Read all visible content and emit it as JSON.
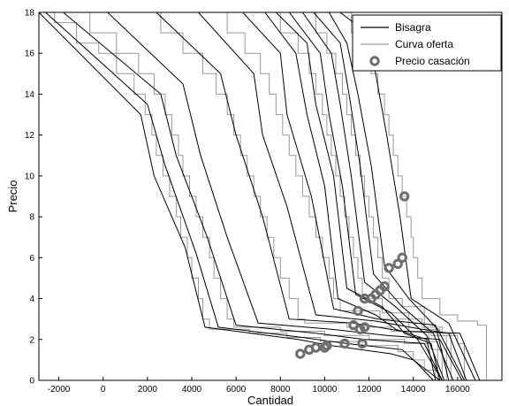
{
  "chart_data": {
    "type": "line",
    "xlabel": "Cantidad",
    "ylabel": "Precio",
    "xlim": [
      -2900,
      18000
    ],
    "ylim": [
      0,
      18
    ],
    "xticks": [
      -2000,
      0,
      2000,
      4000,
      6000,
      8000,
      10000,
      12000,
      14000,
      16000
    ],
    "yticks": [
      0,
      2,
      4,
      6,
      8,
      10,
      12,
      14,
      16,
      18
    ],
    "grid": false,
    "legend_position": "top-right",
    "legend": [
      {
        "label": "Bisagra",
        "kind": "line",
        "color": "#000000"
      },
      {
        "label": "Curva oferta",
        "kind": "line",
        "color": "#9a9a9a"
      },
      {
        "label": "Precio casación",
        "kind": "marker",
        "color": "#6e6e6e"
      }
    ],
    "series_bisagra": [
      [
        [
          -2900,
          18
        ],
        [
          1700,
          13
        ],
        [
          2300,
          10
        ],
        [
          3700,
          6.5
        ],
        [
          4600,
          2.6
        ],
        [
          8800,
          2.0
        ],
        [
          10300,
          1.7
        ],
        [
          13000,
          1.3
        ],
        [
          14000,
          1.0
        ],
        [
          15200,
          0
        ]
      ],
      [
        [
          -2600,
          18
        ],
        [
          2000,
          13.5
        ],
        [
          2800,
          10.5
        ],
        [
          4200,
          6.2
        ],
        [
          5200,
          2.6
        ],
        [
          9000,
          2.1
        ],
        [
          11000,
          1.8
        ],
        [
          13500,
          1.5
        ],
        [
          14200,
          0.8
        ],
        [
          14900,
          0
        ]
      ],
      [
        [
          -1800,
          18
        ],
        [
          2600,
          14
        ],
        [
          3300,
          11
        ],
        [
          4700,
          7
        ],
        [
          6000,
          2.7
        ],
        [
          9600,
          2.3
        ],
        [
          11800,
          2.0
        ],
        [
          14500,
          1.8
        ],
        [
          15300,
          0
        ]
      ],
      [
        [
          200,
          18
        ],
        [
          3600,
          14.5
        ],
        [
          4400,
          11
        ],
        [
          5600,
          7
        ],
        [
          7000,
          2.8
        ],
        [
          10300,
          2.5
        ],
        [
          12800,
          2.2
        ],
        [
          15200,
          2.0
        ],
        [
          16200,
          0
        ]
      ],
      [
        [
          2400,
          18
        ],
        [
          5300,
          15
        ],
        [
          6000,
          12
        ],
        [
          7200,
          8
        ],
        [
          8400,
          3.0
        ],
        [
          11300,
          2.8
        ],
        [
          13500,
          2.4
        ],
        [
          16100,
          2.3
        ],
        [
          17000,
          0
        ]
      ],
      [
        [
          4300,
          18
        ],
        [
          6800,
          15
        ],
        [
          7200,
          12
        ],
        [
          8300,
          8.5
        ],
        [
          9600,
          3.2
        ],
        [
          12300,
          2.9
        ],
        [
          14400,
          2.5
        ],
        [
          15600,
          2.3
        ],
        [
          16400,
          0
        ]
      ],
      [
        [
          6300,
          18
        ],
        [
          8000,
          16
        ],
        [
          8300,
          13
        ],
        [
          9400,
          9
        ],
        [
          10400,
          3.5
        ],
        [
          12400,
          3.0
        ],
        [
          15000,
          2.7
        ],
        [
          15600,
          0
        ]
      ],
      [
        [
          7300,
          18
        ],
        [
          8700,
          16
        ],
        [
          9200,
          13
        ],
        [
          10000,
          9.5
        ],
        [
          10600,
          4
        ],
        [
          12300,
          3.2
        ],
        [
          13200,
          2.5
        ],
        [
          14600,
          2.0
        ],
        [
          15000,
          0
        ]
      ],
      [
        [
          7800,
          18
        ],
        [
          9200,
          16.5
        ],
        [
          9600,
          13.5
        ],
        [
          10400,
          10
        ],
        [
          11000,
          4.5
        ],
        [
          12600,
          3.6
        ],
        [
          13600,
          2.3
        ],
        [
          14800,
          1.8
        ],
        [
          15200,
          0
        ]
      ],
      [
        [
          8400,
          18
        ],
        [
          9800,
          16
        ],
        [
          10200,
          13
        ],
        [
          10800,
          9.5
        ],
        [
          11400,
          4.2
        ],
        [
          13000,
          3.3
        ],
        [
          14200,
          2.0
        ],
        [
          15300,
          0
        ]
      ],
      [
        [
          9000,
          18
        ],
        [
          10300,
          16
        ],
        [
          10700,
          13.5
        ],
        [
          11200,
          10
        ],
        [
          11800,
          4.8
        ],
        [
          13200,
          3.6
        ],
        [
          14600,
          2.2
        ],
        [
          15400,
          0
        ]
      ],
      [
        [
          9500,
          18
        ],
        [
          10700,
          16.5
        ],
        [
          11100,
          14
        ],
        [
          11600,
          10.5
        ],
        [
          12200,
          5.2
        ],
        [
          13500,
          3.6
        ],
        [
          14900,
          2.3
        ],
        [
          15800,
          0
        ]
      ],
      [
        [
          10200,
          18
        ],
        [
          11000,
          16.5
        ],
        [
          11500,
          14
        ],
        [
          12100,
          10.5
        ],
        [
          12700,
          5.6
        ],
        [
          13800,
          4.0
        ],
        [
          15100,
          2.5
        ],
        [
          16300,
          0
        ]
      ],
      [
        [
          10700,
          18
        ],
        [
          11900,
          17
        ],
        [
          12300,
          15
        ],
        [
          12800,
          12
        ],
        [
          13400,
          8
        ],
        [
          13900,
          4
        ],
        [
          15600,
          2.8
        ],
        [
          16800,
          0
        ]
      ]
    ],
    "series_oferta": [
      [
        [
          -2600,
          18
        ],
        [
          -2200,
          17.5
        ],
        [
          -1200,
          16.5
        ],
        [
          -200,
          16
        ],
        [
          600,
          15
        ],
        [
          1400,
          14
        ],
        [
          1900,
          13
        ],
        [
          2200,
          12
        ],
        [
          2400,
          11
        ],
        [
          2700,
          10
        ],
        [
          3000,
          9
        ],
        [
          3300,
          8
        ],
        [
          3500,
          7
        ],
        [
          3800,
          6
        ],
        [
          4000,
          5
        ],
        [
          4300,
          4
        ],
        [
          4500,
          3
        ],
        [
          4800,
          2.5
        ],
        [
          6600,
          2.3
        ],
        [
          8300,
          2.1
        ],
        [
          9800,
          1.9
        ],
        [
          11700,
          1.7
        ],
        [
          13300,
          1.4
        ],
        [
          14000,
          1.0
        ],
        [
          14500,
          0.5
        ],
        [
          15000,
          0
        ]
      ],
      [
        [
          -1600,
          18
        ],
        [
          -600,
          17
        ],
        [
          600,
          16
        ],
        [
          1600,
          15
        ],
        [
          2300,
          14
        ],
        [
          2800,
          13
        ],
        [
          3100,
          12
        ],
        [
          3400,
          11
        ],
        [
          3600,
          10
        ],
        [
          3900,
          9
        ],
        [
          4200,
          8
        ],
        [
          4500,
          7
        ],
        [
          4800,
          6
        ],
        [
          5000,
          5
        ],
        [
          5300,
          4
        ],
        [
          5600,
          3
        ],
        [
          5900,
          2.6
        ],
        [
          8000,
          2.4
        ],
        [
          10000,
          2.2
        ],
        [
          12000,
          2.0
        ],
        [
          13600,
          1.8
        ],
        [
          14800,
          1.5
        ],
        [
          15300,
          0
        ]
      ],
      [
        [
          1400,
          18
        ],
        [
          2600,
          17
        ],
        [
          3600,
          16
        ],
        [
          4500,
          15
        ],
        [
          5100,
          14
        ],
        [
          5600,
          13
        ],
        [
          5900,
          12
        ],
        [
          6200,
          11
        ],
        [
          6500,
          10
        ],
        [
          6800,
          9
        ],
        [
          7100,
          8
        ],
        [
          7400,
          7
        ],
        [
          7700,
          6
        ],
        [
          8000,
          5
        ],
        [
          8400,
          4
        ],
        [
          8800,
          3
        ],
        [
          9100,
          2.8
        ],
        [
          11000,
          2.6
        ],
        [
          13000,
          2.4
        ],
        [
          14800,
          2.2
        ],
        [
          16000,
          1.8
        ],
        [
          16300,
          0
        ]
      ],
      [
        [
          4400,
          18
        ],
        [
          5600,
          17
        ],
        [
          6400,
          16
        ],
        [
          7100,
          15
        ],
        [
          7500,
          14
        ],
        [
          7800,
          13
        ],
        [
          8100,
          12
        ],
        [
          8400,
          11
        ],
        [
          8700,
          10
        ],
        [
          9000,
          9
        ],
        [
          9300,
          8
        ],
        [
          9600,
          7
        ],
        [
          9900,
          6
        ],
        [
          10200,
          5
        ],
        [
          10400,
          4
        ],
        [
          10700,
          3.4
        ],
        [
          12500,
          3.0
        ],
        [
          14400,
          2.6
        ],
        [
          15300,
          2.3
        ],
        [
          15700,
          0
        ]
      ],
      [
        [
          7000,
          18
        ],
        [
          8000,
          17
        ],
        [
          8800,
          16
        ],
        [
          9300,
          15
        ],
        [
          9600,
          14
        ],
        [
          9900,
          13
        ],
        [
          10100,
          12
        ],
        [
          10300,
          11
        ],
        [
          10500,
          10
        ],
        [
          10700,
          9
        ],
        [
          10900,
          8
        ],
        [
          11100,
          7
        ],
        [
          11300,
          6
        ],
        [
          11500,
          5
        ],
        [
          11700,
          4
        ],
        [
          12600,
          3.3
        ],
        [
          13800,
          2.4
        ],
        [
          14700,
          1.9
        ],
        [
          15100,
          0
        ]
      ],
      [
        [
          8800,
          18
        ],
        [
          9600,
          17
        ],
        [
          10100,
          16
        ],
        [
          10500,
          15
        ],
        [
          10800,
          14
        ],
        [
          11000,
          13
        ],
        [
          11200,
          12
        ],
        [
          11400,
          11
        ],
        [
          11600,
          10
        ],
        [
          11800,
          9
        ],
        [
          12000,
          8
        ],
        [
          12200,
          7
        ],
        [
          12400,
          6
        ],
        [
          12600,
          5
        ],
        [
          12900,
          4
        ],
        [
          13500,
          3.6
        ],
        [
          14500,
          2.5
        ],
        [
          15200,
          2.2
        ],
        [
          15500,
          0
        ]
      ],
      [
        [
          10300,
          18
        ],
        [
          11200,
          17
        ],
        [
          11700,
          16
        ],
        [
          12100,
          15
        ],
        [
          12400,
          14
        ],
        [
          12700,
          13
        ],
        [
          12900,
          12
        ],
        [
          13100,
          11
        ],
        [
          13300,
          10
        ],
        [
          13500,
          9
        ],
        [
          13700,
          8
        ],
        [
          13900,
          7
        ],
        [
          14000,
          6
        ],
        [
          14200,
          5
        ],
        [
          14400,
          4
        ],
        [
          15200,
          3.2
        ],
        [
          16000,
          2.9
        ],
        [
          16900,
          2.7
        ],
        [
          17300,
          0
        ]
      ]
    ],
    "points_casacion": [
      [
        8900,
        1.3
      ],
      [
        9300,
        1.5
      ],
      [
        9600,
        1.6
      ],
      [
        10000,
        1.6
      ],
      [
        10100,
        1.7
      ],
      [
        10900,
        1.8
      ],
      [
        11700,
        1.8
      ],
      [
        11300,
        2.7
      ],
      [
        11600,
        2.5
      ],
      [
        11800,
        2.6
      ],
      [
        11500,
        3.4
      ],
      [
        11800,
        4.0
      ],
      [
        12100,
        4.0
      ],
      [
        12300,
        4.2
      ],
      [
        12500,
        4.4
      ],
      [
        12700,
        4.6
      ],
      [
        12900,
        5.5
      ],
      [
        13300,
        5.7
      ],
      [
        13500,
        6.0
      ],
      [
        13600,
        9.0
      ]
    ]
  }
}
